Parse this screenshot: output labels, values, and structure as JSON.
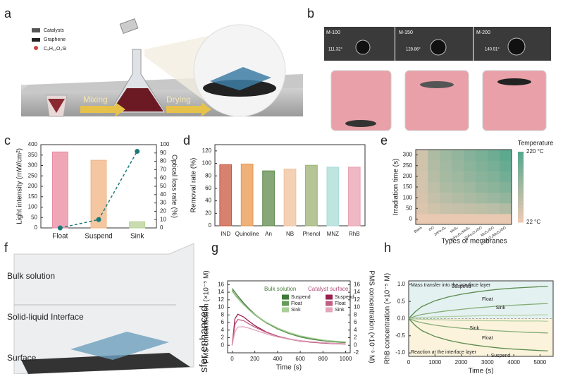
{
  "illustrations": {
    "a": {
      "panel_label": "a",
      "legend": [
        "Catalysts",
        "Graphene",
        "C₉H₁₂O₃Si"
      ],
      "steps": [
        "Mixing",
        "Drying"
      ]
    },
    "b": {
      "panel_label": "b",
      "samples": [
        "M-100",
        "M-150",
        "M-200"
      ],
      "angles": [
        "111.32°",
        "128.86°",
        "140.91°"
      ]
    },
    "f": {
      "panel_label": "f",
      "layers": [
        "Bulk solution",
        "Solid-liquid Interface",
        "Surface"
      ],
      "side_text": "sfer enhanced"
    }
  },
  "chart_data": [
    {
      "type": "bar",
      "panel_label": "c",
      "categories": [
        "Float",
        "Suspend",
        "Sink"
      ],
      "series": [
        {
          "values": [
            365,
            325,
            30
          ],
          "colors": [
            "#e98aa0",
            "#f0b482",
            "#b7d094"
          ]
        },
        {
          "type": "line",
          "axis": "y2",
          "values": [
            0,
            10,
            92
          ],
          "color": "#1b7a78"
        }
      ],
      "ylim": [
        0,
        400
      ],
      "yticks": [
        0,
        50,
        100,
        150,
        200,
        250,
        300,
        350,
        400
      ],
      "y2lim": [
        0,
        100
      ],
      "y2ticks": [
        0,
        10,
        20,
        30,
        40,
        50,
        60,
        70,
        80,
        90,
        100
      ],
      "ylabel": "Light intensity (mW/cm²)",
      "y2label": "Optical loss rate (%)"
    },
    {
      "type": "bar",
      "panel_label": "d",
      "categories": [
        "IND",
        "Quinoline",
        "An",
        "NB",
        "Phenol",
        "MNZ",
        "RhB"
      ],
      "series": [
        {
          "values": [
            98,
            99,
            88,
            91,
            97,
            94,
            94
          ],
          "colors": [
            "#c9573f",
            "#ea964c",
            "#5e8b4b",
            "#f0c29c",
            "#9cb272",
            "#a9dcd7",
            "#e8a1b1"
          ]
        }
      ],
      "ylim": [
        0,
        130
      ],
      "yticks": [
        0,
        20,
        40,
        60,
        80,
        100,
        120
      ],
      "ylabel": "Removal rate (%)"
    },
    {
      "type": "heatmap",
      "panel_label": "e",
      "categories": [
        "Blank",
        "GO",
        "ZnFe₂O₄",
        "MoS₂",
        "ZnFe₂O₄/MoS₂",
        "ZnFe₂O₄/GO",
        "MoS₂/GO",
        "ZnFe₂O₄/MoS₂/GO"
      ],
      "y": [
        0,
        50,
        100,
        150,
        200,
        250,
        300
      ],
      "values": [
        [
          25,
          25,
          25,
          25,
          25,
          25,
          25,
          25
        ],
        [
          45,
          60,
          70,
          75,
          80,
          85,
          90,
          100
        ],
        [
          50,
          75,
          90,
          100,
          110,
          120,
          130,
          140
        ],
        [
          55,
          85,
          105,
          115,
          125,
          140,
          150,
          165
        ],
        [
          55,
          95,
          115,
          125,
          140,
          155,
          165,
          185
        ],
        [
          60,
          100,
          120,
          135,
          150,
          165,
          180,
          200
        ],
        [
          60,
          105,
          125,
          140,
          160,
          175,
          190,
          215
        ]
      ],
      "ylim": [
        -25,
        325
      ],
      "yticks": [
        0,
        50,
        100,
        150,
        200,
        250,
        300
      ],
      "zlim": [
        22,
        220
      ],
      "zticks": [
        {
          "value": 220,
          "label": "220 °C"
        },
        {
          "value": 22,
          "label": "22 °C"
        }
      ],
      "colorscale": [
        "#ecc9b3",
        "#58a88e"
      ],
      "colorbar_title": "Temperature",
      "xlabel": "Types of membranes",
      "ylabel": "Irradiation time (s)"
    },
    {
      "type": "line",
      "panel_label": "g",
      "x": [
        0,
        25,
        50,
        100,
        150,
        200,
        300,
        400,
        500,
        600,
        700,
        800,
        900,
        1000
      ],
      "legend_titles": [
        "Bulk solution",
        "Catalyst surface"
      ],
      "series": [
        {
          "name": "Suspend",
          "color": "#3f7a3a",
          "values": [
            15,
            14,
            13,
            11.2,
            9.6,
            8.2,
            6,
            4.3,
            3.1,
            2.2,
            1.6,
            1.2,
            0.9,
            0.7
          ]
        },
        {
          "name": "Float",
          "color": "#629c58",
          "values": [
            14.5,
            13.4,
            12.5,
            10.8,
            9.3,
            8,
            5.9,
            4.3,
            3.1,
            2.3,
            1.7,
            1.3,
            1,
            0.8
          ]
        },
        {
          "name": "Sink",
          "color": "#a9cf96",
          "values": [
            14.2,
            13.2,
            12.3,
            10.7,
            9.3,
            8.1,
            6.1,
            4.6,
            3.4,
            2.5,
            1.9,
            1.4,
            1.1,
            0.9
          ]
        },
        {
          "name": "Suspend",
          "color": "#9a2050",
          "axis": "y2",
          "values": [
            0,
            7,
            8.2,
            7.5,
            6.3,
            5.2,
            3.5,
            2.4,
            1.6,
            1.1,
            0.8,
            0.6,
            0.4,
            0.3
          ]
        },
        {
          "name": "Float",
          "color": "#c25c82",
          "axis": "y2",
          "values": [
            0,
            5.5,
            6.8,
            6.5,
            5.6,
            4.8,
            3.4,
            2.4,
            1.7,
            1.2,
            0.9,
            0.7,
            0.5,
            0.4
          ]
        },
        {
          "name": "Sink",
          "color": "#e3a5b9",
          "axis": "y2",
          "values": [
            0,
            3.5,
            4.8,
            4.9,
            4.5,
            4,
            3,
            2.2,
            1.6,
            1.2,
            0.9,
            0.7,
            0.5,
            0.4
          ]
        }
      ],
      "xlim": [
        -40,
        1040
      ],
      "xticks": [
        0,
        200,
        400,
        600,
        800,
        1000
      ],
      "ylim": [
        -2,
        17
      ],
      "yticks": [
        0,
        2,
        4,
        6,
        8,
        10,
        12,
        14,
        16
      ],
      "y2lim": [
        -2,
        17
      ],
      "y2ticks": [
        -2,
        0,
        2,
        4,
        6,
        8,
        10,
        12,
        14,
        16
      ],
      "xlabel": "Time (s)",
      "ylabel": "PMS concentration (×10⁻⁵ M)",
      "y2label": "PMS concentration (×10⁻⁶ M)"
    },
    {
      "type": "line",
      "panel_label": "h",
      "x": [
        0,
        250,
        500,
        1000,
        1500,
        2000,
        2500,
        3000,
        3500,
        4000,
        4500,
        5000,
        5300
      ],
      "annotations": [
        "Mass transfer into the interface layer",
        "Reaction at the  interface layer"
      ],
      "series": [
        {
          "name": "Suspend",
          "color": "#5b8a4e",
          "values": [
            0,
            0.2,
            0.35,
            0.52,
            0.63,
            0.71,
            0.77,
            0.82,
            0.86,
            0.89,
            0.91,
            0.93,
            0.94
          ]
        },
        {
          "name": "Float",
          "color": "#86ad78",
          "values": [
            0,
            0.07,
            0.12,
            0.18,
            0.23,
            0.27,
            0.31,
            0.34,
            0.37,
            0.39,
            0.41,
            0.43,
            0.44
          ]
        },
        {
          "name": "Sink",
          "color": "#b3cfa5",
          "values": [
            0,
            0.02,
            0.03,
            0.05,
            0.06,
            0.07,
            0.08,
            0.09,
            0.09,
            0.1,
            0.1,
            0.11,
            0.11
          ]
        },
        {
          "name": "Sink",
          "color": "#b3cfa5",
          "values": [
            0,
            -0.01,
            -0.02,
            -0.03,
            -0.04,
            -0.05,
            -0.05,
            -0.06,
            -0.06,
            -0.07,
            -0.07,
            -0.07,
            -0.08
          ]
        },
        {
          "name": "Float",
          "color": "#86ad78",
          "values": [
            0,
            -0.07,
            -0.12,
            -0.19,
            -0.24,
            -0.28,
            -0.31,
            -0.34,
            -0.36,
            -0.38,
            -0.4,
            -0.41,
            -0.42
          ]
        },
        {
          "name": "Suspend",
          "color": "#5b8a4e",
          "values": [
            0,
            -0.2,
            -0.35,
            -0.52,
            -0.63,
            -0.71,
            -0.77,
            -0.82,
            -0.86,
            -0.89,
            -0.91,
            -0.93,
            -0.94
          ]
        }
      ],
      "xlim": [
        0,
        5500
      ],
      "xticks": [
        0,
        1000,
        2000,
        3000,
        4000,
        5000
      ],
      "ylim": [
        -1.1,
        1.1
      ],
      "yticks": [
        {
          "value": -1,
          "label": "-1.0"
        },
        {
          "value": -0.5,
          "label": "-0.5"
        },
        {
          "value": 0,
          "label": "0.0"
        },
        {
          "value": 0.5,
          "label": "0.5"
        },
        {
          "value": 1,
          "label": "1.0"
        }
      ],
      "background": [
        "#e4f1f1",
        "#fbf3dc"
      ],
      "xlabel": "Time (s)",
      "ylabel": "RhB concentration (×10⁻⁵ M)"
    }
  ]
}
